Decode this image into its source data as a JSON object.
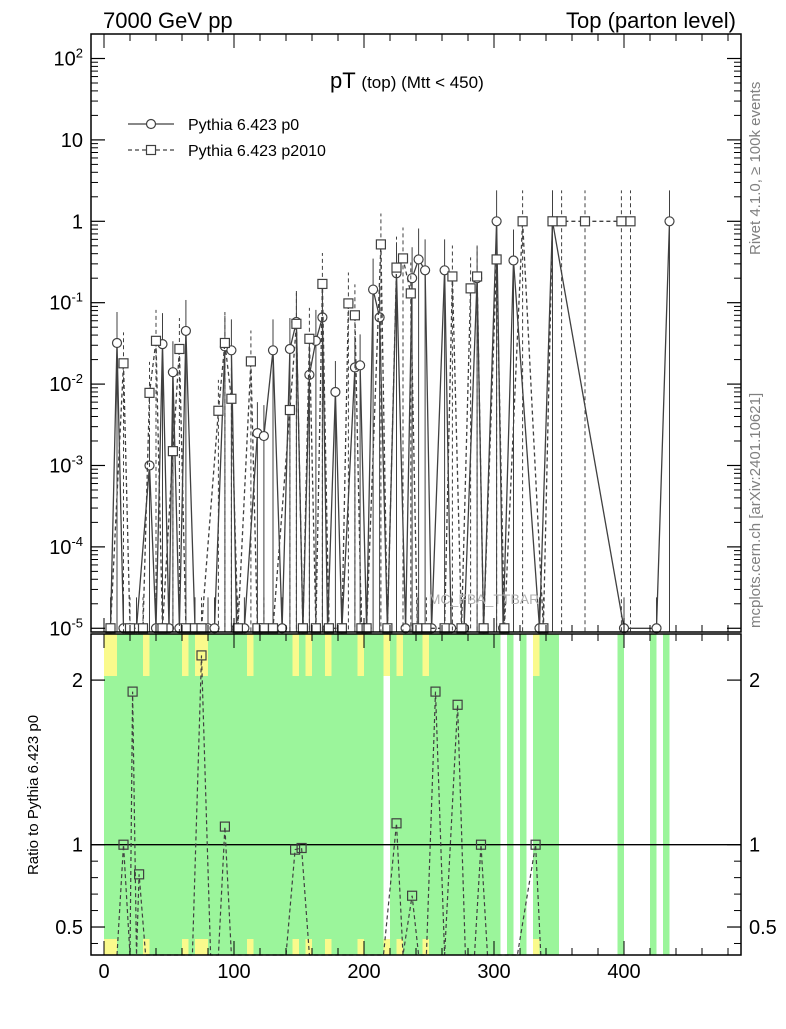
{
  "header": {
    "left": "7000 GeV pp",
    "right": "Top (parton level)"
  },
  "side": {
    "rivet": "Rivet 4.1.0, ≥ 100k events",
    "mcplots": "mcplots.cern.ch [arXiv:2401.10621]"
  },
  "watermark": "MC_FBA_TTBAR",
  "colors": {
    "green": "#9bf59b",
    "yellow": "#fafa8c",
    "line": "#404040",
    "ref": "#000000"
  },
  "chart_data": [
    {
      "type": "line",
      "panel": "main",
      "title": "pT (top) (Mtt < 450)",
      "title_main": "pT",
      "title_sub": "(top) (Mtt < 450)",
      "yscale": "log",
      "ylim": [
        9e-06,
        200
      ],
      "xlim": [
        -10,
        490
      ],
      "yticks": [
        {
          "v": 100,
          "label": "10^2"
        },
        {
          "v": 10,
          "label": "10"
        },
        {
          "v": 1,
          "label": "1"
        },
        {
          "v": 0.1,
          "label": "10^-1"
        },
        {
          "v": 0.01,
          "label": "10^-2"
        },
        {
          "v": 0.001,
          "label": "10^-3"
        },
        {
          "v": 0.0001,
          "label": "10^-4"
        },
        {
          "v": 1e-05,
          "label": "10^-5"
        }
      ],
      "legend": [
        "Pythia 6.423 p0",
        "Pythia 6.423 p2010"
      ],
      "series": [
        {
          "name": "Pythia 6.423 p0",
          "style": "solid",
          "marker": "circle",
          "points": [
            [
              5,
              1e-05
            ],
            [
              10,
              0.032
            ],
            [
              15,
              1e-05
            ],
            [
              25,
              1e-05
            ],
            [
              35,
              0.001
            ],
            [
              40,
              1e-05
            ],
            [
              45,
              0.031
            ],
            [
              50,
              1e-05
            ],
            [
              53,
              0.014
            ],
            [
              58,
              1e-05
            ],
            [
              63,
              0.045
            ],
            [
              70,
              1e-05
            ],
            [
              80,
              1e-05
            ],
            [
              85,
              1e-05
            ],
            [
              93,
              0.029
            ],
            [
              98,
              0.026
            ],
            [
              102,
              1e-05
            ],
            [
              108,
              1e-05
            ],
            [
              118,
              0.0025
            ],
            [
              123,
              0.0023
            ],
            [
              130,
              0.026
            ],
            [
              137,
              1e-05
            ],
            [
              143,
              0.027
            ],
            [
              148,
              0.058
            ],
            [
              153,
              1e-05
            ],
            [
              158,
              0.013
            ],
            [
              163,
              0.034
            ],
            [
              168,
              0.066
            ],
            [
              172,
              1e-05
            ],
            [
              178,
              0.008
            ],
            [
              183,
              1e-05
            ],
            [
              193,
              0.016
            ],
            [
              197,
              0.017
            ],
            [
              202,
              1e-05
            ],
            [
              207,
              0.145
            ],
            [
              212,
              0.066
            ],
            [
              218,
              1e-05
            ],
            [
              225,
              0.23
            ],
            [
              232,
              1e-05
            ],
            [
              237,
              0.2
            ],
            [
              242,
              0.34
            ],
            [
              247,
              0.25
            ],
            [
              252,
              1e-05
            ],
            [
              262,
              0.25
            ],
            [
              267,
              1e-05
            ],
            [
              277,
              1e-05
            ],
            [
              287,
              0.2
            ],
            [
              292,
              1e-05
            ],
            [
              302,
              1.0
            ],
            [
              307,
              1e-05
            ],
            [
              315,
              0.33
            ],
            [
              335,
              1e-05
            ],
            [
              345,
              1.0
            ],
            [
              400,
              1e-05
            ],
            [
              425,
              1e-05
            ],
            [
              435,
              1.0
            ]
          ]
        },
        {
          "name": "Pythia 6.423 p2010",
          "style": "dashed",
          "marker": "square",
          "points": [
            [
              5,
              1e-05
            ],
            [
              15,
              0.018
            ],
            [
              20,
              1e-05
            ],
            [
              30,
              1e-05
            ],
            [
              35,
              0.0078
            ],
            [
              40,
              0.034
            ],
            [
              45,
              1e-05
            ],
            [
              53,
              0.0015
            ],
            [
              58,
              0.027
            ],
            [
              63,
              1e-05
            ],
            [
              70,
              1e-05
            ],
            [
              75,
              1e-05
            ],
            [
              88,
              0.0047
            ],
            [
              93,
              0.032
            ],
            [
              98,
              0.0066
            ],
            [
              103,
              1e-05
            ],
            [
              113,
              0.019
            ],
            [
              118,
              1e-05
            ],
            [
              123,
              1e-05
            ],
            [
              130,
              1e-05
            ],
            [
              143,
              0.0048
            ],
            [
              148,
              0.055
            ],
            [
              153,
              1e-05
            ],
            [
              158,
              0.036
            ],
            [
              163,
              1e-05
            ],
            [
              168,
              0.17
            ],
            [
              173,
              1e-05
            ],
            [
              183,
              1e-05
            ],
            [
              188,
              0.098
            ],
            [
              193,
              0.07
            ],
            [
              198,
              1e-05
            ],
            [
              202,
              1e-05
            ],
            [
              213,
              0.52
            ],
            [
              218,
              1e-05
            ],
            [
              225,
              0.27
            ],
            [
              230,
              0.35
            ],
            [
              236,
              0.13
            ],
            [
              241,
              1e-05
            ],
            [
              248,
              1e-05
            ],
            [
              262,
              1e-05
            ],
            [
              268,
              0.21
            ],
            [
              275,
              1e-05
            ],
            [
              282,
              0.15
            ],
            [
              287,
              0.21
            ],
            [
              292,
              1e-05
            ],
            [
              302,
              0.34
            ],
            [
              308,
              1e-05
            ],
            [
              322,
              1.0
            ],
            [
              338,
              1e-05
            ],
            [
              345,
              1.0
            ],
            [
              352,
              1.0
            ],
            [
              370,
              1.0
            ],
            [
              398,
              1.0
            ],
            [
              405,
              1.0
            ]
          ]
        }
      ]
    },
    {
      "type": "line",
      "panel": "ratio",
      "ylabel": "Ratio to Pythia 6.423 p0",
      "xlim": [
        -10,
        490
      ],
      "ylim": [
        0.33,
        2.28
      ],
      "yticks": [
        {
          "v": 0.5,
          "label": "0.5"
        },
        {
          "v": 1,
          "label": "1"
        },
        {
          "v": 2,
          "label": "2"
        }
      ],
      "xticks": [
        {
          "v": 0,
          "label": "0"
        },
        {
          "v": 100,
          "label": "100"
        },
        {
          "v": 200,
          "label": "200"
        },
        {
          "v": 300,
          "label": "300"
        },
        {
          "v": 400,
          "label": "400"
        }
      ],
      "reference": 1,
      "band_green": [
        [
          0,
          5
        ],
        [
          5,
          10
        ],
        [
          10,
          15
        ],
        [
          15,
          20
        ],
        [
          20,
          25
        ],
        [
          25,
          30
        ],
        [
          30,
          35
        ],
        [
          35,
          40
        ],
        [
          40,
          45
        ],
        [
          45,
          50
        ],
        [
          50,
          55
        ],
        [
          55,
          60
        ],
        [
          60,
          65
        ],
        [
          65,
          70
        ],
        [
          70,
          75
        ],
        [
          75,
          80
        ],
        [
          80,
          85
        ],
        [
          85,
          90
        ],
        [
          90,
          95
        ],
        [
          95,
          100
        ],
        [
          100,
          105
        ],
        [
          105,
          110
        ],
        [
          110,
          115
        ],
        [
          115,
          120
        ],
        [
          120,
          125
        ],
        [
          125,
          130
        ],
        [
          130,
          135
        ],
        [
          135,
          140
        ],
        [
          140,
          145
        ],
        [
          145,
          150
        ],
        [
          150,
          155
        ],
        [
          155,
          160
        ],
        [
          160,
          165
        ],
        [
          165,
          170
        ],
        [
          170,
          175
        ],
        [
          175,
          180
        ],
        [
          180,
          185
        ],
        [
          185,
          190
        ],
        [
          190,
          195
        ],
        [
          195,
          200
        ],
        [
          200,
          205
        ],
        [
          205,
          210
        ],
        [
          210,
          215
        ],
        [
          220,
          225
        ],
        [
          225,
          230
        ],
        [
          230,
          235
        ],
        [
          235,
          240
        ],
        [
          240,
          245
        ],
        [
          245,
          250
        ],
        [
          250,
          255
        ],
        [
          255,
          260
        ],
        [
          260,
          265
        ],
        [
          265,
          270
        ],
        [
          270,
          275
        ],
        [
          275,
          280
        ],
        [
          280,
          285
        ],
        [
          285,
          290
        ],
        [
          290,
          295
        ],
        [
          295,
          300
        ],
        [
          300,
          305
        ],
        [
          310,
          315
        ],
        [
          320,
          325
        ],
        [
          330,
          335
        ],
        [
          335,
          340
        ],
        [
          340,
          345
        ],
        [
          345,
          350
        ],
        [
          395,
          400
        ],
        [
          420,
          425
        ],
        [
          430,
          435
        ]
      ],
      "band_yellow": [
        [
          0,
          5
        ],
        [
          5,
          10
        ],
        [
          30,
          35
        ],
        [
          60,
          65
        ],
        [
          70,
          75
        ],
        [
          75,
          80
        ],
        [
          110,
          115
        ],
        [
          145,
          150
        ],
        [
          155,
          160
        ],
        [
          170,
          175
        ],
        [
          195,
          200
        ],
        [
          215,
          220
        ],
        [
          225,
          230
        ],
        [
          245,
          250
        ],
        [
          330,
          335
        ]
      ],
      "series": [
        {
          "name": "Pythia 6.423 p2010",
          "style": "dashed",
          "marker": "square",
          "points": [
            [
              10,
              0.33
            ],
            [
              15,
              1.0
            ],
            [
              20,
              0.33
            ],
            [
              22,
              1.93
            ],
            [
              25,
              0.33
            ],
            [
              27,
              0.82
            ],
            [
              32,
              0.33
            ],
            [
              60,
              0.33
            ],
            [
              68,
              0.33
            ],
            [
              75,
              2.15
            ],
            [
              82,
              0.33
            ],
            [
              88,
              0.33
            ],
            [
              93,
              1.11
            ],
            [
              98,
              0.33
            ],
            [
              140,
              0.33
            ],
            [
              147,
              0.97
            ],
            [
              152,
              0.98
            ],
            [
              158,
              0.33
            ],
            [
              190,
              0.33
            ],
            [
              202,
              0.33
            ],
            [
              215,
              0.33
            ],
            [
              225,
              1.13
            ],
            [
              230,
              0.33
            ],
            [
              237,
              0.69
            ],
            [
              242,
              0.33
            ],
            [
              248,
              0.33
            ],
            [
              255,
              1.93
            ],
            [
              262,
              0.33
            ],
            [
              272,
              1.85
            ],
            [
              278,
              0.33
            ],
            [
              285,
              0.33
            ],
            [
              290,
              1.0
            ],
            [
              295,
              0.33
            ],
            [
              318,
              0.33
            ],
            [
              332,
              1.0
            ],
            [
              336,
              0.33
            ]
          ]
        }
      ]
    }
  ]
}
